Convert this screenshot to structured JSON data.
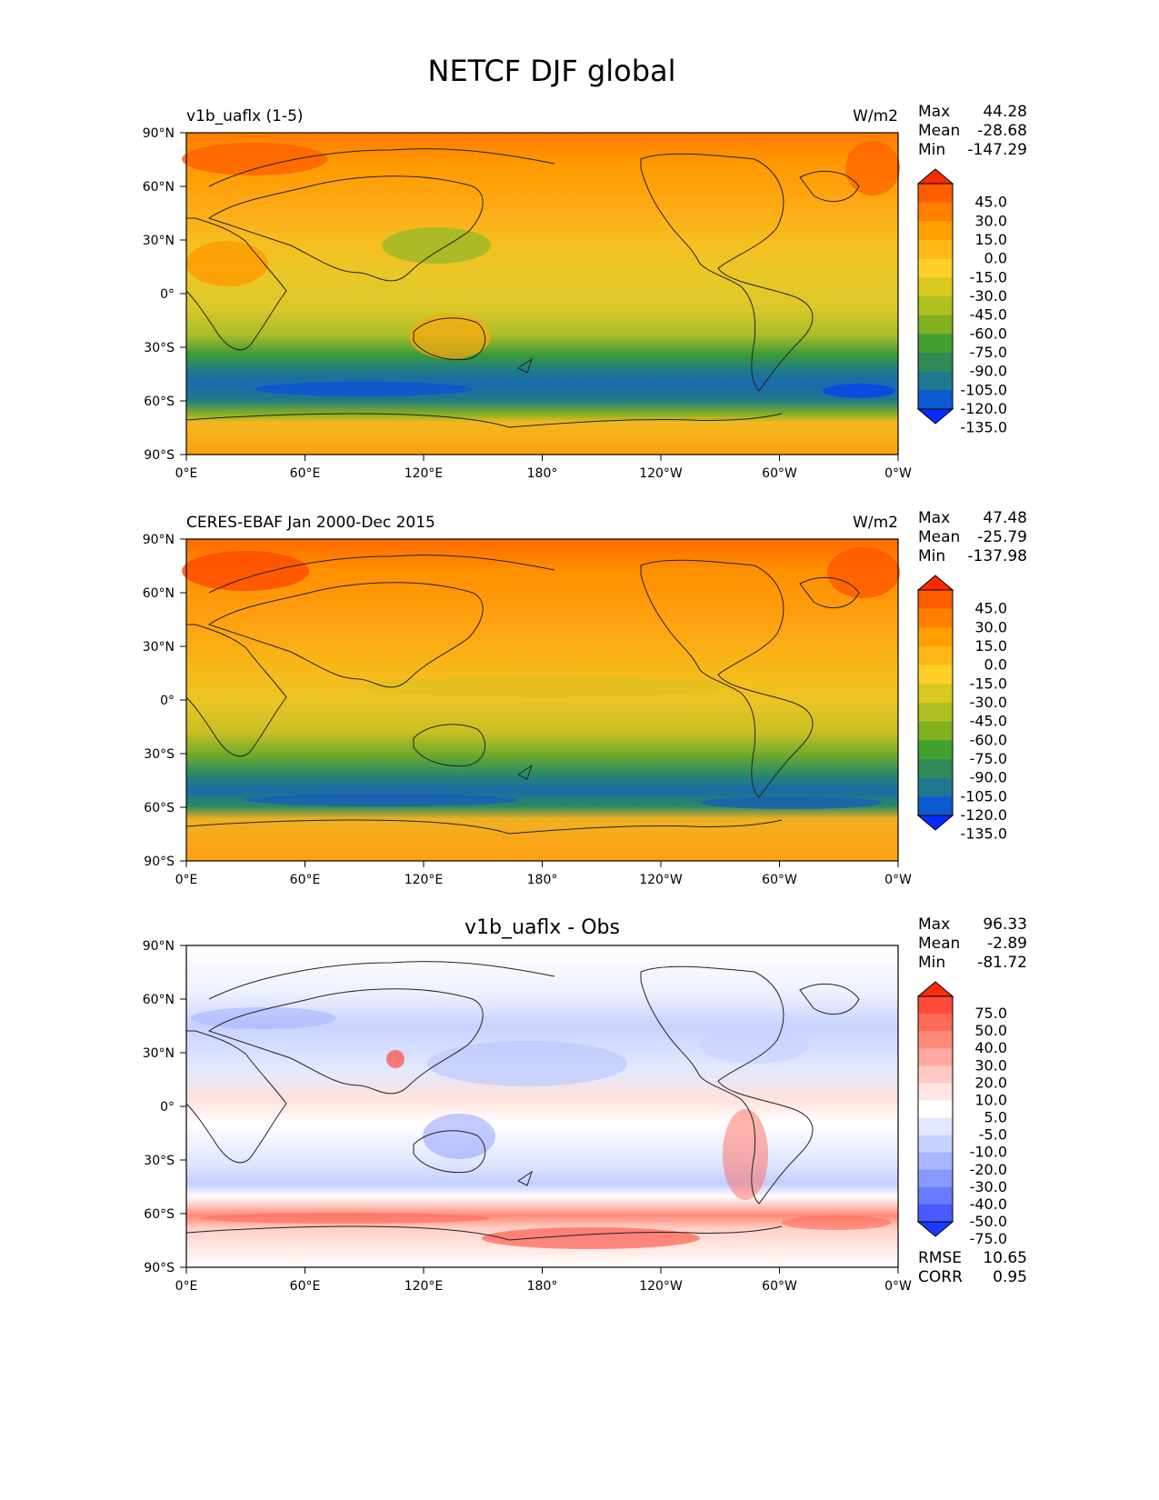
{
  "figure_title": "NETCF DJF global",
  "lat_ticks": [
    "90°N",
    "60°N",
    "30°N",
    "0°",
    "30°S",
    "60°S",
    "90°S"
  ],
  "lon_ticks": [
    "0°E",
    "60°E",
    "120°E",
    "180°",
    "120°W",
    "60°W",
    "0°W"
  ],
  "panels": [
    {
      "left_title": "v1b_uaflx (1-5)",
      "center_title": "",
      "units": "W/m2",
      "stats": [
        {
          "label": "Max",
          "value": "44.28"
        },
        {
          "label": "Mean",
          "value": "-28.68"
        },
        {
          "label": "Min",
          "value": "-147.29"
        }
      ],
      "colorbar": {
        "labels": [
          "45.0",
          "30.0",
          "15.0",
          "0.0",
          "-15.0",
          "-30.0",
          "-45.0",
          "-60.0",
          "-75.0",
          "-90.0",
          "-105.0",
          "-120.0",
          "-135.0"
        ],
        "colors": [
          "#ff2a00",
          "#ff5e00",
          "#ff8000",
          "#ffa000",
          "#ffb818",
          "#ffd02a",
          "#d8c820",
          "#b0c020",
          "#80b020",
          "#44a030",
          "#2f8a58",
          "#1f7890",
          "#0a5ad0",
          "#0a2aff"
        ]
      }
    },
    {
      "left_title": "CERES-EBAF Jan 2000-Dec 2015",
      "center_title": "",
      "units": "W/m2",
      "stats": [
        {
          "label": "Max",
          "value": "47.48"
        },
        {
          "label": "Mean",
          "value": "-25.79"
        },
        {
          "label": "Min",
          "value": "-137.98"
        }
      ],
      "colorbar": {
        "labels": [
          "45.0",
          "30.0",
          "15.0",
          "0.0",
          "-15.0",
          "-30.0",
          "-45.0",
          "-60.0",
          "-75.0",
          "-90.0",
          "-105.0",
          "-120.0",
          "-135.0"
        ],
        "colors": [
          "#ff2a00",
          "#ff5e00",
          "#ff8000",
          "#ffa000",
          "#ffb818",
          "#ffd02a",
          "#d8c820",
          "#b0c020",
          "#80b020",
          "#44a030",
          "#2f8a58",
          "#1f7890",
          "#0a5ad0",
          "#0a2aff"
        ]
      }
    },
    {
      "left_title": "",
      "center_title": "v1b_uaflx - Obs",
      "units": "",
      "stats": [
        {
          "label": "Max",
          "value": "96.33"
        },
        {
          "label": "Mean",
          "value": "-2.89"
        },
        {
          "label": "Min",
          "value": "-81.72"
        }
      ],
      "colorbar": {
        "labels": [
          "75.0",
          "50.0",
          "40.0",
          "30.0",
          "20.0",
          "10.0",
          "5.0",
          "-5.0",
          "-10.0",
          "-20.0",
          "-30.0",
          "-40.0",
          "-50.0",
          "-75.0"
        ],
        "colors": [
          "#ff2a10",
          "#ff4a3a",
          "#ff6a5a",
          "#ff8a7a",
          "#ffaaa0",
          "#ffcac4",
          "#ffe6e2",
          "#ffffff",
          "#e2e8ff",
          "#c8d2ff",
          "#a8b6ff",
          "#8898ff",
          "#6a7aff",
          "#4a5aff",
          "#1a3aff"
        ]
      },
      "extra_stats": [
        {
          "label": "RMSE",
          "value": "10.65"
        },
        {
          "label": "CORR",
          "value": "0.95"
        }
      ]
    }
  ]
}
